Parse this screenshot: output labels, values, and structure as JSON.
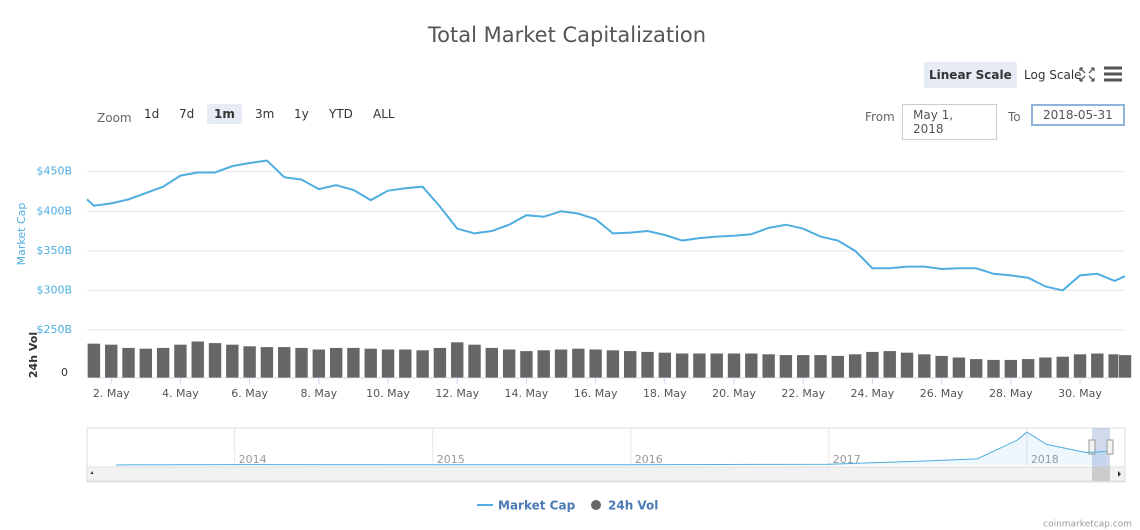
{
  "chart_data": {
    "type": "line",
    "title": "Total Market Capitalization",
    "ylabel": "Market Cap",
    "y2label": "24h Vol",
    "x": [
      1.3,
      1.5,
      2,
      2.5,
      3,
      3.5,
      4,
      4.5,
      5,
      5.5,
      6,
      6.5,
      7,
      7.5,
      8,
      8.5,
      9,
      9.5,
      10,
      10.5,
      11,
      11.5,
      12,
      12.5,
      13,
      13.5,
      14,
      14.5,
      15,
      15.5,
      16,
      16.5,
      17,
      17.5,
      18,
      18.5,
      19,
      19.5,
      20,
      20.5,
      21,
      21.5,
      22,
      22.5,
      23,
      23.5,
      24,
      24.5,
      25,
      25.5,
      26,
      26.5,
      27,
      27.5,
      28,
      28.5,
      29,
      29.5,
      30,
      30.5,
      31,
      31.3
    ],
    "series": [
      {
        "name": "Market Cap",
        "color": "#4fade0",
        "axis": "y",
        "values": [
          415,
          407,
          410,
          415,
          423,
          431,
          445,
          449,
          449,
          457,
          461,
          464,
          443,
          440,
          428,
          433,
          427,
          414,
          426,
          429,
          431,
          406,
          378,
          372,
          375,
          383,
          395,
          393,
          400,
          397,
          390,
          372,
          373,
          375,
          370,
          363,
          366,
          368,
          369,
          371,
          379,
          383,
          378,
          368,
          363,
          350,
          328,
          328,
          330,
          330,
          327,
          328,
          328,
          321,
          319,
          316,
          305,
          300,
          319,
          321,
          312,
          318
        ]
      },
      {
        "name": "24h Vol",
        "color": "#666666",
        "axis": "y2",
        "values": [
          22,
          21.5,
          21,
          19,
          18.5,
          19,
          21,
          23,
          22,
          21,
          20,
          19.5,
          19.5,
          19,
          18,
          19,
          19,
          18.5,
          18,
          18,
          17.5,
          19,
          22.5,
          21,
          19,
          18,
          17,
          17.5,
          18,
          18.5,
          18,
          17.5,
          17,
          16.5,
          16,
          15.5,
          15.5,
          15.5,
          15.5,
          15.5,
          15,
          14.5,
          14.5,
          14.5,
          14,
          15,
          16.5,
          17,
          16,
          15,
          14,
          13,
          12,
          11.5,
          11.5,
          12,
          13,
          13.5,
          15,
          15.5,
          15,
          14.5
        ]
      }
    ],
    "xlim": [
      1.3,
      31.3
    ],
    "xticks": [
      {
        "value": 2,
        "label": "2. May"
      },
      {
        "value": 4,
        "label": "4. May"
      },
      {
        "value": 6,
        "label": "6. May"
      },
      {
        "value": 8,
        "label": "8. May"
      },
      {
        "value": 10,
        "label": "10. May"
      },
      {
        "value": 12,
        "label": "12. May"
      },
      {
        "value": 14,
        "label": "14. May"
      },
      {
        "value": 16,
        "label": "16. May"
      },
      {
        "value": 18,
        "label": "18. May"
      },
      {
        "value": 20,
        "label": "20. May"
      },
      {
        "value": 22,
        "label": "22. May"
      },
      {
        "value": 24,
        "label": "24. May"
      },
      {
        "value": 26,
        "label": "26. May"
      },
      {
        "value": 28,
        "label": "28. May"
      },
      {
        "value": 30,
        "label": "30. May"
      }
    ],
    "ylim": [
      250,
      490
    ],
    "yticks": [
      {
        "value": 250,
        "label": "$250B"
      },
      {
        "value": 300,
        "label": "$300B"
      },
      {
        "value": 350,
        "label": "$350B"
      },
      {
        "value": 400,
        "label": "$400B"
      },
      {
        "value": 450,
        "label": "$450B"
      }
    ],
    "y2lim": [
      0,
      30
    ],
    "y2ticks": [
      0
    ],
    "grid": true
  },
  "controls": {
    "zoom_label": "Zoom",
    "zoom_options": [
      "1d",
      "7d",
      "1m",
      "3m",
      "1y",
      "YTD",
      "ALL"
    ],
    "zoom_selected": 2,
    "scales": [
      "Linear Scale",
      "Log Scale"
    ],
    "scale_selected": 0,
    "from_label": "From",
    "from_value": "May 1, 2018",
    "to_label": "To",
    "to_value": "2018-05-31"
  },
  "navigator": {
    "x": [
      2013.4,
      2014,
      2015,
      2016,
      2017,
      2017.5,
      2017.75,
      2017.95,
      2018,
      2018.1,
      2018.2,
      2018.3,
      2018.4
    ],
    "values": [
      1,
      10,
      5,
      7,
      18,
      100,
      150,
      600,
      800,
      500,
      400,
      300,
      330
    ],
    "xlim": [
      2013.32,
      2018.42
    ],
    "ylim": [
      0,
      850
    ],
    "xticks": [
      2014,
      2015,
      2016,
      2017,
      2018
    ]
  },
  "credit": "coinmarketcap.com"
}
